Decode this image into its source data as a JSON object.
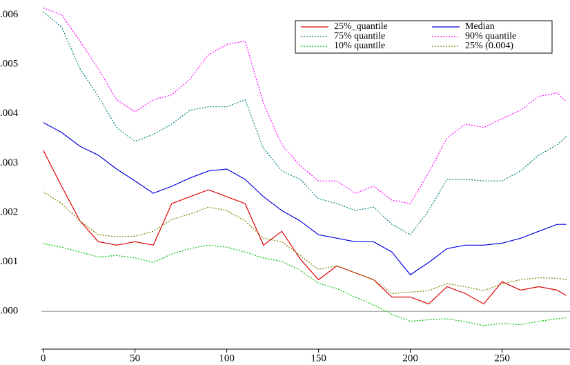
{
  "chart_data": {
    "type": "line",
    "x": [
      0,
      10,
      20,
      30,
      40,
      50,
      60,
      70,
      80,
      90,
      100,
      110,
      120,
      130,
      140,
      150,
      160,
      170,
      180,
      190,
      200,
      210,
      220,
      230,
      240,
      250,
      260,
      270,
      280,
      285
    ],
    "series": [
      {
        "name": "25%_quantile",
        "color": "#e00000",
        "dash": false,
        "values": [
          0.00326,
          0.00253,
          0.00183,
          0.00141,
          0.00134,
          0.00141,
          0.00134,
          0.00218,
          0.00232,
          0.00246,
          0.00232,
          0.00218,
          0.00134,
          0.00162,
          0.00106,
          0.00064,
          0.00092,
          0.00078,
          0.00064,
          0.00029,
          0.00029,
          0.00015,
          0.0005,
          0.00036,
          0.00015,
          0.0006,
          0.00043,
          0.0005,
          0.00043,
          0.00032
        ]
      },
      {
        "name": "Median",
        "color": "#0000e0",
        "dash": false,
        "values": [
          0.00382,
          0.00362,
          0.00334,
          0.00316,
          0.00288,
          0.00264,
          0.00239,
          0.00253,
          0.0027,
          0.00284,
          0.00288,
          0.00267,
          0.00232,
          0.00204,
          0.00183,
          0.00155,
          0.00148,
          0.00141,
          0.00141,
          0.0012,
          0.00074,
          0.00099,
          0.00127,
          0.00134,
          0.00134,
          0.00138,
          0.00148,
          0.00162,
          0.00176,
          0.00176
        ]
      },
      {
        "name": "75% quantile",
        "color": "#008080",
        "dash": true,
        "values": [
          0.00606,
          0.00575,
          0.00491,
          0.00435,
          0.00372,
          0.00344,
          0.00358,
          0.00379,
          0.00407,
          0.00414,
          0.00414,
          0.00428,
          0.0033,
          0.00284,
          0.00267,
          0.00228,
          0.00218,
          0.00204,
          0.00211,
          0.00176,
          0.00155,
          0.00204,
          0.00267,
          0.00267,
          0.00264,
          0.00264,
          0.00284,
          0.00316,
          0.00337,
          0.00354
        ]
      },
      {
        "name": "90% quantile",
        "color": "#ff00ff",
        "dash": true,
        "values": [
          0.00614,
          0.006,
          0.00547,
          0.00491,
          0.00428,
          0.00404,
          0.00428,
          0.00438,
          0.0047,
          0.00519,
          0.0054,
          0.00547,
          0.00421,
          0.00337,
          0.00295,
          0.00264,
          0.00264,
          0.00239,
          0.00253,
          0.00225,
          0.00218,
          0.00281,
          0.00351,
          0.00379,
          0.00372,
          0.0039,
          0.00407,
          0.00435,
          0.00442,
          0.00424
        ]
      },
      {
        "name": "10% quantile",
        "color": "#00c000",
        "dash": true,
        "values": [
          0.00137,
          0.0013,
          0.0012,
          0.0011,
          0.00113,
          0.00108,
          0.00099,
          0.00116,
          0.00127,
          0.00134,
          0.0013,
          0.0012,
          0.00108,
          0.00101,
          0.00083,
          0.00057,
          0.00046,
          0.00029,
          0.00013,
          -6e-05,
          -0.0002,
          -0.00017,
          -0.00015,
          -0.00021,
          -0.00029,
          -0.00024,
          -0.00027,
          -0.0002,
          -0.00015,
          -0.00013
        ]
      },
      {
        "name": "25% (0.004)",
        "color": "#808000",
        "dash": true,
        "values": [
          0.00242,
          0.00218,
          0.00183,
          0.00155,
          0.00151,
          0.00152,
          0.00162,
          0.00186,
          0.00197,
          0.00211,
          0.00204,
          0.00183,
          0.00148,
          0.00141,
          0.00113,
          0.00085,
          0.00092,
          0.00078,
          0.00064,
          0.00036,
          0.00039,
          0.00042,
          0.00056,
          0.0005,
          0.00042,
          0.00056,
          0.00064,
          0.00068,
          0.00067,
          0.00064
        ]
      }
    ],
    "xlim": [
      -1,
      287
    ],
    "xticks": [
      0,
      50,
      100,
      150,
      200,
      250
    ],
    "ylim": [
      -0.00075,
      0.0063
    ],
    "yticks": [
      {
        "value": 0,
        "label": ".000"
      },
      {
        "value": 0.001,
        "label": ".001"
      },
      {
        "value": 0.002,
        "label": ".002"
      },
      {
        "value": 0.003,
        "label": ".003"
      },
      {
        "value": 0.004,
        "label": ".004"
      },
      {
        "value": 0.005,
        "label": ".005"
      },
      {
        "value": 0.006,
        "label": ".006"
      }
    ],
    "reference_line": 0,
    "legend": "top-right"
  }
}
